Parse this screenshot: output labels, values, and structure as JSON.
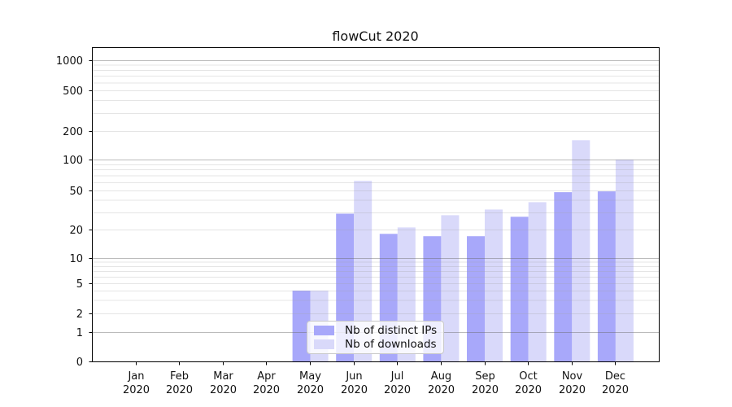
{
  "chart_data": {
    "type": "bar",
    "title": "flowCut 2020",
    "xlabel": "",
    "ylabel": "",
    "year": "2020",
    "months": [
      "Jan",
      "Feb",
      "Mar",
      "Apr",
      "May",
      "Jun",
      "Jul",
      "Aug",
      "Sep",
      "Oct",
      "Nov",
      "Dec"
    ],
    "series": [
      {
        "key": "distinct-ips",
        "name": "Nb of distinct IPs",
        "color": "#a8a8fa",
        "values": [
          null,
          null,
          null,
          null,
          4,
          29,
          18,
          17,
          17,
          27,
          48,
          49
        ]
      },
      {
        "key": "downloads",
        "name": "Nb of downloads",
        "color": "#d9d9fa",
        "values": [
          null,
          null,
          null,
          null,
          4,
          62,
          21,
          28,
          32,
          38,
          160,
          100
        ]
      }
    ],
    "y_axis": {
      "scale": "symlog",
      "ticks": [
        0,
        1,
        2,
        5,
        10,
        20,
        50,
        100,
        200,
        500,
        1000
      ],
      "ylim_bottom": 0,
      "ylim_top": 1500
    },
    "grid": {
      "on": true,
      "major_lines": [
        1,
        10,
        100,
        1000
      ],
      "minor_lines": [
        2,
        3,
        4,
        5,
        6,
        7,
        8,
        9,
        20,
        30,
        40,
        50,
        60,
        70,
        80,
        90,
        200,
        300,
        400,
        500,
        600,
        700,
        800,
        900
      ]
    },
    "legend": {
      "position": "lower center-left",
      "entries": [
        "Nb of distinct IPs",
        "Nb of downloads"
      ]
    },
    "colors": {
      "major_grid": "#b3b3b3",
      "minor_grid": "#e6e6e6",
      "axis_frame": "#000000"
    }
  }
}
